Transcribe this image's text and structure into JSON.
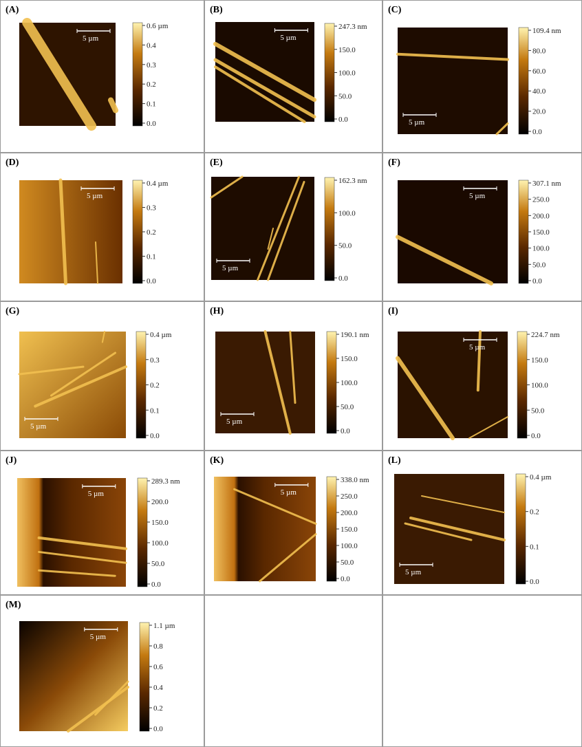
{
  "panels": [
    {
      "label": "(A)",
      "scale": "5 µm",
      "colorbar": [
        "0.6 µm",
        "0.4",
        "0.3",
        "0.2",
        "0.1",
        "0.0"
      ]
    },
    {
      "label": "(B)",
      "scale": "5 µm",
      "colorbar": [
        "247.3 nm",
        "150.0",
        "100.0",
        "50.0",
        "0.0"
      ]
    },
    {
      "label": "(C)",
      "scale": "5 µm",
      "colorbar": [
        "109.4 nm",
        "80.0",
        "60.0",
        "40.0",
        "20.0",
        "0.0"
      ]
    },
    {
      "label": "(D)",
      "scale": "5 µm",
      "colorbar": [
        "0.4 µm",
        "0.3",
        "0.2",
        "0.1",
        "0.0"
      ]
    },
    {
      "label": "(E)",
      "scale": "5 µm",
      "colorbar": [
        "162.3 nm",
        "100.0",
        "50.0",
        "0.0"
      ]
    },
    {
      "label": "(F)",
      "scale": "5 µm",
      "colorbar": [
        "307.1 nm",
        "250.0",
        "200.0",
        "150.0",
        "100.0",
        "50.0",
        "0.0"
      ]
    },
    {
      "label": "(G)",
      "scale": "5 µm",
      "colorbar": [
        "0.4 µm",
        "0.3",
        "0.2",
        "0.1",
        "0.0"
      ]
    },
    {
      "label": "(H)",
      "scale": "5 µm",
      "colorbar": [
        "190.1 nm",
        "150.0",
        "100.0",
        "50.0",
        "0.0"
      ]
    },
    {
      "label": "(I)",
      "scale": "5 µm",
      "colorbar": [
        "224.7 nm",
        "150.0",
        "100.0",
        "50.0",
        "0.0"
      ]
    },
    {
      "label": "(J)",
      "scale": "5 µm",
      "colorbar": [
        "289.3 nm",
        "200.0",
        "150.0",
        "100.0",
        "50.0",
        "0.0"
      ]
    },
    {
      "label": "(K)",
      "scale": "5 µm",
      "colorbar": [
        "338.0 nm",
        "250.0",
        "200.0",
        "150.0",
        "100.0",
        "50.0",
        "0.0"
      ]
    },
    {
      "label": "(L)",
      "scale": "5 µm",
      "colorbar": [
        "0.4 µm",
        "0.2",
        "0.1",
        "0.0"
      ]
    },
    {
      "label": "(M)",
      "scale": "5 µm",
      "colorbar": [
        "1.1 µm",
        "0.8",
        "0.6",
        "0.4",
        "0.2",
        "0.0"
      ]
    }
  ]
}
